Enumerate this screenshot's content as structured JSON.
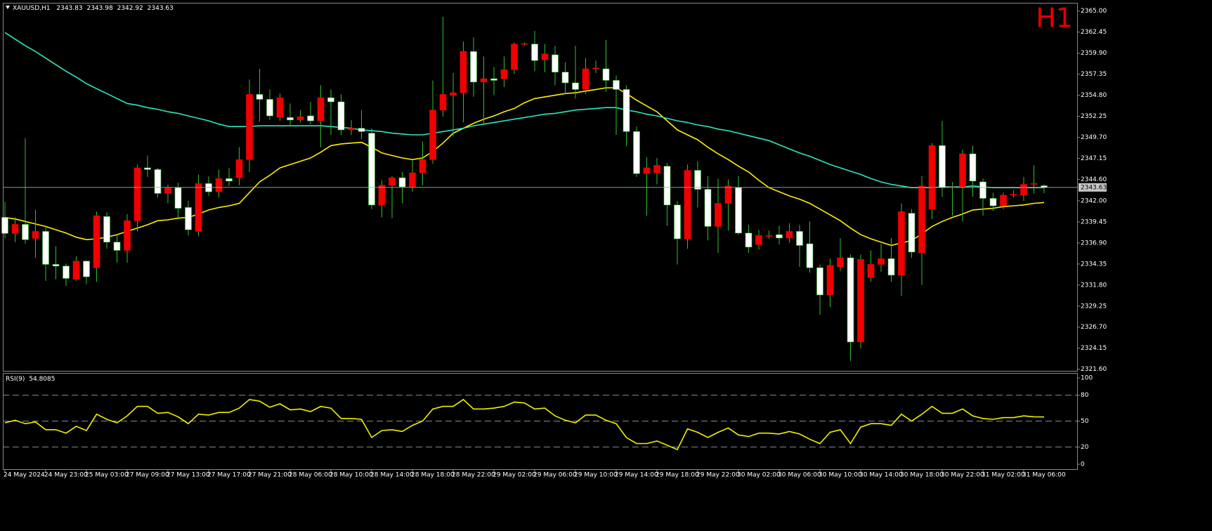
{
  "chart_data": [
    {
      "type": "candlestick",
      "symbol": "XAUUSD,H1",
      "timeframe_label": "H1",
      "categories": [
        "24 May 2024",
        null,
        null,
        null,
        "24 May 23:00",
        null,
        null,
        null,
        "25 May 03:00",
        null,
        null,
        null,
        "27 May 09:00",
        null,
        null,
        null,
        "27 May 13:00",
        null,
        null,
        null,
        "27 May 17:00",
        null,
        null,
        null,
        "27 May 21:00",
        null,
        null,
        null,
        "28 May 06:00",
        null,
        null,
        null,
        "28 May 10:00",
        null,
        null,
        null,
        "28 May 14:00",
        null,
        null,
        null,
        "28 May 18:00",
        null,
        null,
        null,
        "28 May 22:00",
        null,
        null,
        null,
        "29 May 02:00",
        null,
        null,
        null,
        "29 May 06:00",
        null,
        null,
        null,
        "29 May 10:00",
        null,
        null,
        null,
        "29 May 14:00",
        null,
        null,
        null,
        "29 May 18:00",
        null,
        null,
        null,
        "29 May 22:00",
        null,
        null,
        null,
        "30 May 02:00",
        null,
        null,
        null,
        "30 May 06:00",
        null,
        null,
        null,
        "30 May 10:00",
        null,
        null,
        null,
        "30 May 14:00",
        null,
        null,
        null,
        "30 May 18:00",
        null,
        null,
        null,
        "30 May 22:00",
        null,
        null,
        null,
        "31 May 02:00",
        null,
        null,
        null,
        "31 May 06:00",
        null,
        null
      ],
      "open": [
        2340.0,
        2338.05,
        2339.15,
        2337.45,
        2338.3,
        2334.3,
        2334.1,
        2332.5,
        2334.7,
        2333.9,
        2340.1,
        2337.0,
        2336.0,
        2339.6,
        2346.0,
        2345.8,
        2342.9,
        2343.6,
        2341.2,
        2338.3,
        2344.1,
        2343.1,
        2344.7,
        2344.8,
        2347.0,
        2354.9,
        2354.3,
        2352.1,
        2352.1,
        2351.8,
        2352.3,
        2351.7,
        2354.5,
        2354.0,
        2350.6,
        2350.8,
        2350.2,
        2341.5,
        2343.9,
        2344.8,
        2343.7,
        2345.4,
        2347.0,
        2353.0,
        2354.8,
        2355.1,
        2360.1,
        2356.4,
        2356.8,
        2356.8,
        2357.9,
        2361.0,
        2361.0,
        2359.1,
        2359.7,
        2357.6,
        2356.3,
        2355.5,
        2358.0,
        2358.0,
        2356.6,
        2355.5,
        2350.4,
        2345.3,
        2345.4,
        2346.2,
        2341.5,
        2337.4,
        2345.7,
        2343.4,
        2338.9,
        2341.7,
        2343.6,
        2338.1,
        2336.7,
        2337.7,
        2337.9,
        2337.5,
        2338.3,
        2336.8,
        2333.9,
        2330.6,
        2334.0,
        2335.1,
        2324.9,
        2332.7,
        2334.3,
        2335.0,
        2333.0,
        2340.5,
        2335.7,
        2341.0,
        2348.7,
        2343.6,
        2343.6,
        2347.7,
        2344.3,
        2342.3,
        2341.4,
        2342.7,
        2342.7,
        2344.0,
        2343.83
      ],
      "high": [
        2341.9,
        2340.0,
        2349.6,
        2340.9,
        2339.0,
        2336.5,
        2334.4,
        2335.3,
        2334.8,
        2340.7,
        2340.6,
        2337.9,
        2340.4,
        2346.4,
        2347.5,
        2346.0,
        2344.0,
        2344.2,
        2342.0,
        2345.2,
        2345.0,
        2345.8,
        2346.0,
        2348.5,
        2356.7,
        2358.0,
        2355.5,
        2355.0,
        2353.8,
        2353.0,
        2354.0,
        2356.0,
        2355.5,
        2354.9,
        2351.8,
        2353.0,
        2350.8,
        2344.5,
        2345.0,
        2345.5,
        2347.0,
        2349.2,
        2356.6,
        2364.3,
        2357.5,
        2361.3,
        2361.8,
        2359.5,
        2358.2,
        2359.5,
        2361.2,
        2361.2,
        2362.6,
        2361.0,
        2360.8,
        2358.8,
        2360.8,
        2359.3,
        2359.0,
        2361.5,
        2357.2,
        2356.0,
        2351.0,
        2347.3,
        2347.2,
        2346.6,
        2342.0,
        2346.4,
        2346.8,
        2345.0,
        2344.7,
        2344.6,
        2345.0,
        2339.1,
        2338.5,
        2338.4,
        2339.0,
        2339.3,
        2339.1,
        2339.5,
        2334.3,
        2335.0,
        2337.5,
        2335.5,
        2335.5,
        2336.0,
        2336.8,
        2337.5,
        2341.7,
        2341.0,
        2345.0,
        2349.0,
        2351.7,
        2344.3,
        2348.2,
        2348.7,
        2344.7,
        2343.0,
        2343.0,
        2343.3,
        2344.9,
        2346.3,
        2343.98
      ],
      "low": [
        2337.45,
        2337.0,
        2336.8,
        2335.1,
        2332.3,
        2332.5,
        2331.7,
        2332.3,
        2331.9,
        2332.2,
        2336.2,
        2334.5,
        2334.5,
        2338.3,
        2344.9,
        2342.4,
        2341.7,
        2340.0,
        2337.8,
        2337.7,
        2342.6,
        2342.4,
        2343.8,
        2343.9,
        2345.5,
        2351.6,
        2351.8,
        2351.7,
        2351.2,
        2351.5,
        2351.3,
        2348.5,
        2350.0,
        2350.0,
        2350.0,
        2349.5,
        2341.0,
        2340.0,
        2339.9,
        2341.7,
        2343.1,
        2343.9,
        2346.5,
        2352.2,
        2349.8,
        2351.5,
        2354.6,
        2351.4,
        2354.8,
        2355.8,
        2357.4,
        2360.8,
        2357.7,
        2357.6,
        2356.0,
        2354.9,
        2354.4,
        2354.9,
        2357.5,
        2355.2,
        2350.0,
        2348.6,
        2344.9,
        2340.2,
        2344.0,
        2339.0,
        2334.3,
        2336.2,
        2341.2,
        2337.2,
        2335.7,
        2338.4,
        2337.9,
        2335.7,
        2336.1,
        2337.4,
        2336.7,
        2336.9,
        2334.0,
        2333.3,
        2328.2,
        2329.1,
        2333.5,
        2322.6,
        2324.1,
        2332.2,
        2333.4,
        2332.2,
        2330.5,
        2335.1,
        2331.8,
        2339.8,
        2342.5,
        2340.2,
        2339.5,
        2342.5,
        2340.2,
        2340.8,
        2341.0,
        2342.4,
        2342.0,
        2342.9,
        2342.92
      ],
      "close": [
        2338.05,
        2339.15,
        2337.3,
        2338.3,
        2334.3,
        2334.1,
        2332.6,
        2334.7,
        2332.8,
        2340.2,
        2337.0,
        2336.0,
        2339.6,
        2346.0,
        2345.8,
        2342.9,
        2343.6,
        2341.1,
        2338.5,
        2344.1,
        2343.1,
        2344.7,
        2344.4,
        2347.0,
        2354.9,
        2354.3,
        2352.3,
        2354.5,
        2351.8,
        2352.2,
        2351.7,
        2354.5,
        2354.0,
        2350.6,
        2350.8,
        2350.4,
        2341.5,
        2343.9,
        2344.8,
        2343.7,
        2345.4,
        2347.0,
        2353.0,
        2354.9,
        2355.1,
        2360.1,
        2356.4,
        2356.8,
        2356.6,
        2357.9,
        2361.0,
        2361.05,
        2359.0,
        2359.8,
        2357.6,
        2356.3,
        2355.5,
        2358.0,
        2358.1,
        2356.6,
        2355.5,
        2350.4,
        2345.3,
        2346.0,
        2346.3,
        2341.5,
        2337.4,
        2345.7,
        2343.4,
        2338.9,
        2341.7,
        2343.8,
        2338.1,
        2336.4,
        2337.8,
        2337.8,
        2337.5,
        2338.3,
        2336.6,
        2333.9,
        2330.6,
        2334.2,
        2335.1,
        2324.9,
        2334.9,
        2334.3,
        2335.0,
        2333.0,
        2340.7,
        2335.8,
        2343.8,
        2348.7,
        2343.6,
        2343.7,
        2347.7,
        2344.4,
        2342.3,
        2341.4,
        2342.7,
        2342.8,
        2344.0,
        2344.1,
        2343.63
      ],
      "bull_color": "#f00000",
      "bear_color": "#ffffff",
      "wick_color": "#2fbf2f",
      "moving_averages": [
        {
          "color": "#ffee00",
          "values": [
            2340.0,
            2339.8,
            2339.5,
            2339.2,
            2338.9,
            2338.5,
            2338.1,
            2337.6,
            2337.3,
            2337.4,
            2337.6,
            2337.9,
            2338.3,
            2338.7,
            2339.1,
            2339.6,
            2339.7,
            2339.9,
            2340.0,
            2340.4,
            2340.9,
            2341.2,
            2341.4,
            2341.7,
            2343.0,
            2344.3,
            2345.1,
            2346.0,
            2346.4,
            2346.8,
            2347.2,
            2347.9,
            2348.7,
            2348.9,
            2349.0,
            2349.1,
            2348.5,
            2347.8,
            2347.5,
            2347.2,
            2347.0,
            2347.2,
            2348.0,
            2349.0,
            2350.2,
            2350.8,
            2351.4,
            2351.9,
            2352.3,
            2352.8,
            2353.2,
            2353.9,
            2354.4,
            2354.6,
            2354.8,
            2355.0,
            2355.1,
            2355.3,
            2355.5,
            2355.7,
            2355.7,
            2355.0,
            2354.2,
            2353.5,
            2352.8,
            2351.7,
            2350.6,
            2350.0,
            2349.4,
            2348.5,
            2347.7,
            2347.0,
            2346.2,
            2345.5,
            2344.5,
            2343.6,
            2343.1,
            2342.6,
            2342.2,
            2341.7,
            2341.0,
            2340.3,
            2339.6,
            2338.7,
            2337.9,
            2337.4,
            2337.0,
            2336.6,
            2336.9,
            2337.2,
            2338.0,
            2338.9,
            2339.5,
            2340.0,
            2340.4,
            2340.9,
            2341.0,
            2341.1,
            2341.3,
            2341.4,
            2341.5,
            2341.7,
            2341.8
          ]
        },
        {
          "color": "#2ee6c0",
          "values": [
            2362.4,
            2361.6,
            2360.8,
            2360.1,
            2359.3,
            2358.5,
            2357.7,
            2357.0,
            2356.2,
            2355.6,
            2355.0,
            2354.4,
            2353.8,
            2353.6,
            2353.3,
            2353.1,
            2352.8,
            2352.6,
            2352.3,
            2352.0,
            2351.7,
            2351.3,
            2351.0,
            2351.0,
            2351.0,
            2351.1,
            2351.1,
            2351.1,
            2351.1,
            2351.1,
            2351.1,
            2351.1,
            2351.0,
            2350.9,
            2350.8,
            2350.6,
            2350.5,
            2350.4,
            2350.2,
            2350.1,
            2350.0,
            2350.0,
            2350.2,
            2350.4,
            2350.6,
            2350.8,
            2351.1,
            2351.3,
            2351.5,
            2351.7,
            2351.9,
            2352.1,
            2352.3,
            2352.5,
            2352.6,
            2352.8,
            2353.0,
            2353.1,
            2353.2,
            2353.3,
            2353.3,
            2353.0,
            2352.8,
            2352.5,
            2352.3,
            2352.0,
            2351.7,
            2351.5,
            2351.2,
            2351.0,
            2350.7,
            2350.5,
            2350.2,
            2349.9,
            2349.6,
            2349.3,
            2348.8,
            2348.3,
            2347.8,
            2347.4,
            2346.9,
            2346.4,
            2346.0,
            2345.6,
            2345.2,
            2344.7,
            2344.3,
            2344.0,
            2343.8,
            2343.6,
            2343.6,
            2343.6,
            2343.7,
            2343.7,
            2343.7,
            2343.8,
            2343.7,
            2343.6,
            2343.6,
            2343.6,
            2343.6,
            2343.6,
            2343.6
          ]
        }
      ],
      "ylim": [
        2321.4,
        2366.0
      ],
      "yticks": [
        {
          "value": 2365,
          "label": "2365.00"
        },
        2362.45,
        {
          "value": 2359.9,
          "label": "2359.90"
        },
        2357.35,
        {
          "value": 2354.8,
          "label": "2354.80"
        },
        2352.25,
        {
          "value": 2349.7,
          "label": "2349.70"
        },
        2347.15,
        {
          "value": 2344.6,
          "label": "2344.60"
        },
        {
          "value": 2342,
          "label": "2342.00"
        },
        2339.45,
        {
          "value": 2336.9,
          "label": "2336.90"
        },
        2334.35,
        {
          "value": 2331.8,
          "label": "2331.80"
        },
        2329.25,
        {
          "value": 2326.7,
          "label": "2326.70"
        },
        2324.15,
        {
          "value": 2321.6,
          "label": "2321.60"
        }
      ]
    },
    {
      "type": "line",
      "title": "RSI(9)",
      "color": "#f0f000",
      "values": [
        48,
        51,
        47,
        49,
        40,
        40,
        36,
        44,
        39,
        58,
        52,
        48,
        56,
        67,
        67,
        59,
        60,
        55,
        47,
        58,
        57,
        60,
        60,
        65,
        75,
        73,
        66,
        70,
        63,
        64,
        61,
        67,
        65,
        53,
        53,
        52,
        31,
        39,
        40,
        38,
        45,
        50,
        64,
        67,
        67,
        75,
        64,
        64,
        65,
        67,
        72,
        71,
        64,
        65,
        56,
        51,
        48,
        57,
        57,
        51,
        47,
        31,
        24,
        24,
        27,
        22,
        17,
        41,
        37,
        31,
        37,
        42,
        34,
        32,
        36,
        36,
        35,
        38,
        35,
        29,
        24,
        37,
        40,
        24,
        43,
        47,
        47,
        45,
        58,
        50,
        58,
        67,
        59,
        59,
        64,
        56,
        53,
        52,
        54,
        54,
        56,
        55,
        54.8085
      ],
      "ylim": [
        -5.7,
        105.7
      ],
      "yticks": [
        0,
        20,
        50,
        80,
        100
      ],
      "levels": [
        20,
        50,
        80
      ]
    }
  ]
}
